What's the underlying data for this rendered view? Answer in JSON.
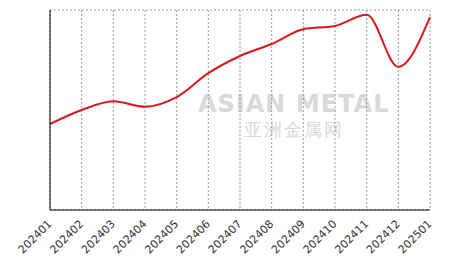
{
  "chart_data": {
    "type": "line",
    "categories": [
      "202401",
      "202402",
      "202403",
      "202404",
      "202405",
      "202406",
      "202407",
      "202408",
      "202409",
      "202410",
      "202411",
      "202412",
      "202501"
    ],
    "values": [
      2.15,
      2.5,
      2.72,
      2.58,
      2.82,
      3.42,
      3.85,
      4.15,
      4.52,
      4.6,
      4.88,
      3.58,
      4.82
    ],
    "color": "#d7191c",
    "ylim": [
      0,
      5
    ],
    "yticks": [
      0,
      1,
      2,
      3,
      4,
      5
    ],
    "grid": true,
    "tick_labels": "x",
    "annotations": [
      "ASIAN METAL",
      "亚洲金属网"
    ]
  }
}
